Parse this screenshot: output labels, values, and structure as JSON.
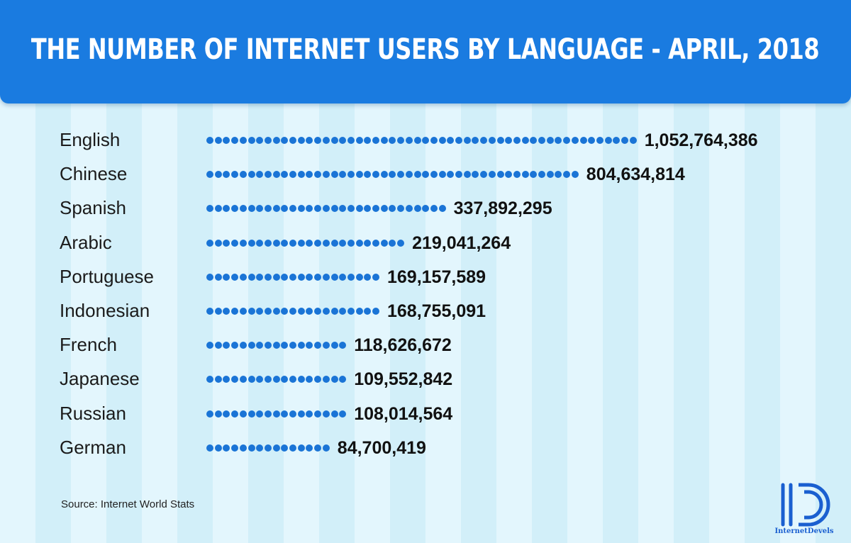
{
  "chart_data": {
    "type": "bar",
    "title": "THE NUMBER OF INTERNET USERS BY LANGUAGE - APRIL, 2018",
    "categories": [
      "English",
      "Chinese",
      "Spanish",
      "Arabic",
      "Portuguese",
      "Indonesian",
      "French",
      "Japanese",
      "Russian",
      "German"
    ],
    "values": [
      1052764386,
      804634814,
      337892295,
      219041264,
      169157589,
      168755091,
      118626672,
      109552842,
      108014564,
      84700419
    ],
    "value_labels": [
      "1,052,764,386",
      "804,634,814",
      "337,892,295",
      "219,041,264",
      "169,157,589",
      "168,755,091",
      "118,626,672",
      "109,552,842",
      "108,014,564",
      "84,700,419"
    ],
    "orientation": "horizontal",
    "bar_style": "dotted",
    "grid": false,
    "legend": "none"
  },
  "source": "Source: Internet World Stats",
  "logo": {
    "text": "InternetDevels",
    "icon": "id-monogram-icon"
  },
  "colors": {
    "header": "#1a7be0",
    "dots": "#1a74d6",
    "logo": "#1a5fd0"
  }
}
